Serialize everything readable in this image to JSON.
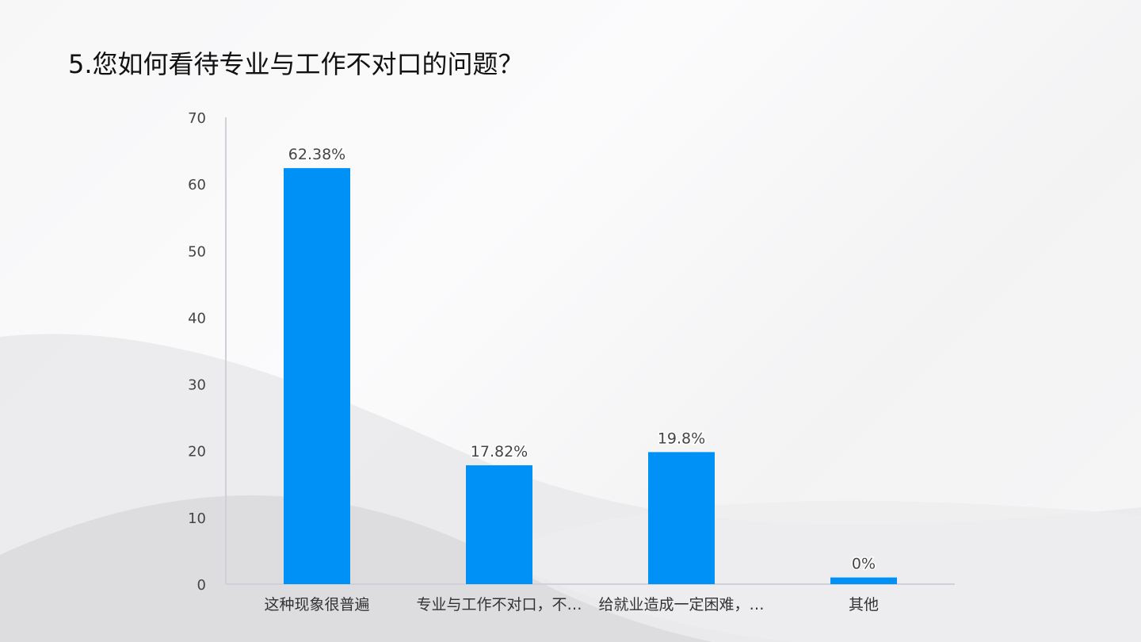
{
  "slide": {
    "title": "5.您如何看待专业与工作不对口的问题？"
  },
  "chart_data": {
    "type": "bar",
    "categories": [
      "这种现象很普遍",
      "专业与工作不对口，不…",
      "给就业造成一定困难，…",
      "其他"
    ],
    "values": [
      62.38,
      17.82,
      19.8,
      0
    ],
    "data_labels": [
      "62.38%",
      "17.82%",
      "19.8%",
      "0%"
    ],
    "display_values": [
      62.38,
      17.82,
      19.8,
      1.0
    ],
    "ylim": [
      0,
      70
    ],
    "yticks": [
      0,
      10,
      20,
      30,
      40,
      50,
      60,
      70
    ],
    "grid": false,
    "legend": "none",
    "bar_color": "#0091f7",
    "axis_color": "#d0d0d8"
  }
}
